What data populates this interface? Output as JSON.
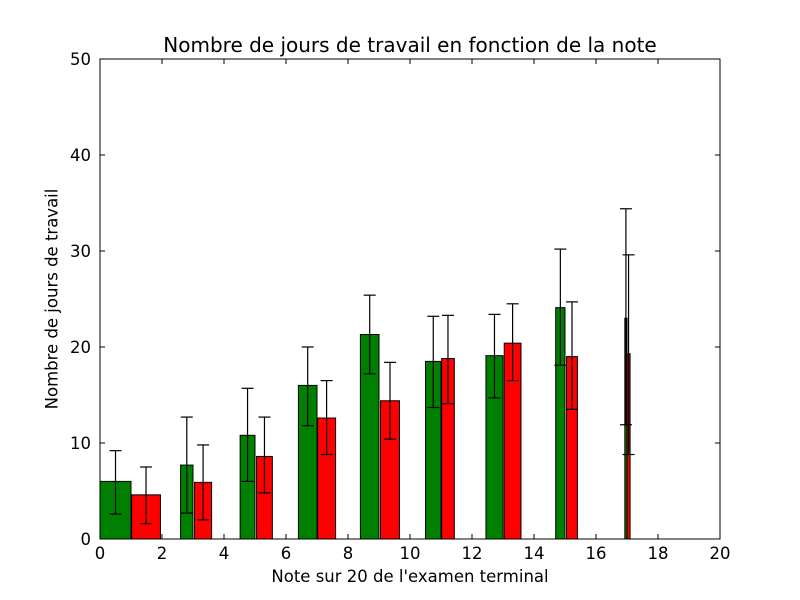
{
  "figure": {
    "background": "#ffffff"
  },
  "chart_data": {
    "type": "bar",
    "title": "Nombre de jours de travail en fonction de la note",
    "xlabel": "Note sur 20 de l'examen terminal",
    "ylabel": "Nombre de jours de travail",
    "xlim": [
      0,
      20
    ],
    "ylim": [
      0,
      50
    ],
    "xticks": [
      0,
      2,
      4,
      6,
      8,
      10,
      12,
      14,
      16,
      18,
      20
    ],
    "yticks": [
      0,
      10,
      20,
      30,
      40,
      50
    ],
    "grid": false,
    "legend": "none",
    "notes": [
      1,
      3,
      5,
      7,
      9,
      11,
      13,
      15,
      17
    ],
    "series": [
      {
        "name": "serie-verte",
        "color": "#008000",
        "edge_color": "#000000",
        "bars": [
          {
            "note": 1,
            "x0": 0.0,
            "x1": 1.0,
            "value": 6.0,
            "err_lo": 2.6,
            "err_hi": 9.2
          },
          {
            "note": 3,
            "x0": 2.6,
            "x1": 3.0,
            "value": 7.7,
            "err_lo": 2.7,
            "err_hi": 12.7
          },
          {
            "note": 5,
            "x0": 4.52,
            "x1": 5.0,
            "value": 10.8,
            "err_lo": 6.0,
            "err_hi": 15.7
          },
          {
            "note": 7,
            "x0": 6.4,
            "x1": 7.0,
            "value": 16.0,
            "err_lo": 11.8,
            "err_hi": 20.0
          },
          {
            "note": 9,
            "x0": 8.4,
            "x1": 9.0,
            "value": 21.3,
            "err_lo": 17.2,
            "err_hi": 25.4
          },
          {
            "note": 11,
            "x0": 10.5,
            "x1": 11.0,
            "value": 18.5,
            "err_lo": 13.7,
            "err_hi": 23.2
          },
          {
            "note": 13,
            "x0": 12.45,
            "x1": 13.0,
            "value": 19.1,
            "err_lo": 14.7,
            "err_hi": 23.4
          },
          {
            "note": 15,
            "x0": 14.7,
            "x1": 15.0,
            "value": 24.1,
            "err_lo": 18.1,
            "err_hi": 30.2
          },
          {
            "note": 17,
            "x0": 16.93,
            "x1": 17.0,
            "value": 23.0,
            "err_lo": 11.9,
            "err_hi": 34.4
          }
        ]
      },
      {
        "name": "serie-rouge",
        "color": "#ff0000",
        "edge_color": "#000000",
        "bars": [
          {
            "note": 1,
            "x0": 1.02,
            "x1": 1.95,
            "value": 4.6,
            "err_lo": 1.6,
            "err_hi": 7.5
          },
          {
            "note": 3,
            "x0": 3.05,
            "x1": 3.6,
            "value": 5.9,
            "err_lo": 2.0,
            "err_hi": 9.8
          },
          {
            "note": 5,
            "x0": 5.05,
            "x1": 5.56,
            "value": 8.6,
            "err_lo": 4.8,
            "err_hi": 12.7
          },
          {
            "note": 7,
            "x0": 7.02,
            "x1": 7.6,
            "value": 12.6,
            "err_lo": 8.8,
            "err_hi": 16.5
          },
          {
            "note": 9,
            "x0": 9.05,
            "x1": 9.66,
            "value": 14.4,
            "err_lo": 10.4,
            "err_hi": 18.4
          },
          {
            "note": 11,
            "x0": 11.02,
            "x1": 11.43,
            "value": 18.8,
            "err_lo": 14.1,
            "err_hi": 23.3
          },
          {
            "note": 13,
            "x0": 13.04,
            "x1": 13.58,
            "value": 20.4,
            "err_lo": 16.5,
            "err_hi": 24.5
          },
          {
            "note": 15,
            "x0": 15.05,
            "x1": 15.4,
            "value": 19.0,
            "err_lo": 13.5,
            "err_hi": 24.7
          },
          {
            "note": 17,
            "x0": 17.0,
            "x1": 17.1,
            "value": 19.3,
            "err_lo": 8.8,
            "err_hi": 29.6
          }
        ]
      }
    ]
  }
}
